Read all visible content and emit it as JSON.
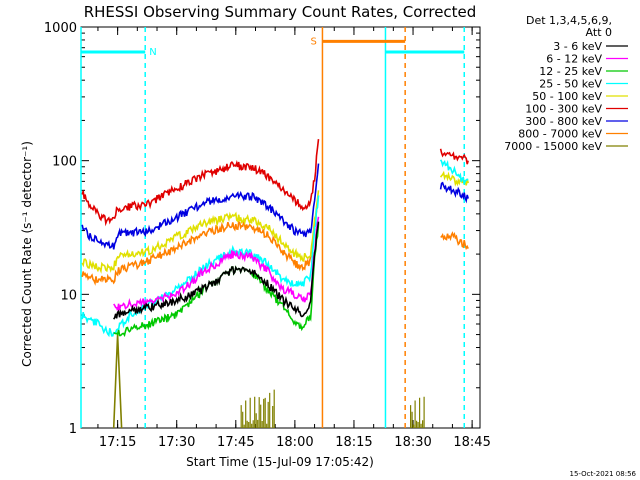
{
  "chart_data": {
    "type": "line",
    "title": "RHESSI Observing Summary Count Rates, Corrected",
    "xlabel": "Start Time (15-Jul-09 17:05:42)",
    "ylabel": "Corrected Count Rate (s⁻¹ detector⁻¹)",
    "yscale": "log",
    "ylim": [
      1,
      1000
    ],
    "xlim": [
      "17:05:42",
      "18:47:00"
    ],
    "xticks": [
      "17:15",
      "17:30",
      "17:45",
      "18:00",
      "18:15",
      "18:30",
      "18:45"
    ],
    "yticks": [
      "1",
      "10",
      "100",
      "1000"
    ],
    "legend_header": [
      "Det 1,3,4,5,6,9,",
      "Att 0"
    ],
    "legend_position": "right",
    "footer": "15-Oct-2021 08:56",
    "series": [
      {
        "name": "3 - 6 keV",
        "color": "#000000",
        "points": [
          [
            "17:14",
            7
          ],
          [
            "17:23",
            8
          ],
          [
            "17:30",
            9
          ],
          [
            "17:37",
            11
          ],
          [
            "17:44",
            15
          ],
          [
            "17:49",
            15
          ],
          [
            "17:53",
            12
          ],
          [
            "17:57",
            9
          ],
          [
            "18:00",
            8
          ],
          [
            "18:02",
            7
          ],
          [
            "18:04",
            9
          ],
          [
            "18:05",
            20
          ],
          [
            "18:06",
            35
          ]
        ]
      },
      {
        "name": "6 - 12 keV",
        "color": "#ff00ff",
        "points": [
          [
            "17:14",
            8
          ],
          [
            "17:23",
            9
          ],
          [
            "17:30",
            10
          ],
          [
            "17:37",
            15
          ],
          [
            "17:44",
            20
          ],
          [
            "17:49",
            19
          ],
          [
            "17:53",
            15
          ],
          [
            "17:57",
            11
          ],
          [
            "18:00",
            10
          ],
          [
            "18:02",
            9
          ],
          [
            "18:04",
            10
          ],
          [
            "18:05",
            22
          ],
          [
            "18:06",
            38
          ]
        ]
      },
      {
        "name": "12 - 25 keV",
        "color": "#00c800",
        "points": [
          [
            "17:14",
            5
          ],
          [
            "17:23",
            6
          ],
          [
            "17:30",
            7
          ],
          [
            "17:37",
            11
          ],
          [
            "17:44",
            15
          ],
          [
            "17:49",
            15
          ],
          [
            "17:53",
            11
          ],
          [
            "17:57",
            8
          ],
          [
            "18:00",
            6
          ],
          [
            "18:02",
            5.5
          ],
          [
            "18:04",
            7
          ],
          [
            "18:05",
            18
          ],
          [
            "18:06",
            34
          ]
        ]
      },
      {
        "name": "25 - 50 keV",
        "color": "#00ffff",
        "points": [
          [
            "17:06",
            7
          ],
          [
            "17:10",
            6
          ],
          [
            "17:14",
            5
          ],
          [
            "17:15",
            5.5
          ],
          [
            "17:18",
            7
          ],
          [
            "17:30",
            11
          ],
          [
            "17:37",
            16
          ],
          [
            "17:44",
            21
          ],
          [
            "17:49",
            20
          ],
          [
            "17:53",
            17
          ],
          [
            "17:57",
            13
          ],
          [
            "18:00",
            12
          ],
          [
            "18:02",
            12
          ],
          [
            "18:04",
            14
          ],
          [
            "18:05",
            30
          ],
          [
            "18:06",
            55
          ]
        ]
      },
      {
        "name": "50 - 100 keV",
        "color": "#e0e000",
        "points": [
          [
            "17:06",
            18
          ],
          [
            "17:09",
            16
          ],
          [
            "17:14",
            16
          ],
          [
            "17:15",
            19
          ],
          [
            "17:23",
            21
          ],
          [
            "17:30",
            27
          ],
          [
            "17:37",
            34
          ],
          [
            "17:44",
            38
          ],
          [
            "17:49",
            36
          ],
          [
            "17:53",
            32
          ],
          [
            "17:57",
            24
          ],
          [
            "18:00",
            20
          ],
          [
            "18:02",
            19
          ],
          [
            "18:04",
            20
          ],
          [
            "18:05",
            35
          ],
          [
            "18:06",
            60
          ]
        ]
      },
      {
        "name": "100 - 300 keV",
        "color": "#e00000",
        "points": [
          [
            "17:06",
            58
          ],
          [
            "17:08",
            45
          ],
          [
            "17:12",
            36
          ],
          [
            "17:14",
            36
          ],
          [
            "17:15",
            44
          ],
          [
            "17:23",
            48
          ],
          [
            "17:30",
            62
          ],
          [
            "17:37",
            78
          ],
          [
            "17:44",
            92
          ],
          [
            "17:49",
            90
          ],
          [
            "17:53",
            78
          ],
          [
            "17:57",
            60
          ],
          [
            "18:00",
            50
          ],
          [
            "18:02",
            46
          ],
          [
            "18:04",
            48
          ],
          [
            "18:05",
            75
          ],
          [
            "18:06",
            145
          ]
        ]
      },
      {
        "name": "300 - 800 keV",
        "color": "#0000e0",
        "points": [
          [
            "17:06",
            33
          ],
          [
            "17:08",
            27
          ],
          [
            "17:12",
            23
          ],
          [
            "17:14",
            23
          ],
          [
            "17:15",
            28
          ],
          [
            "17:23",
            30
          ],
          [
            "17:30",
            38
          ],
          [
            "17:37",
            48
          ],
          [
            "17:44",
            55
          ],
          [
            "17:49",
            54
          ],
          [
            "17:53",
            46
          ],
          [
            "17:57",
            36
          ],
          [
            "18:00",
            30
          ],
          [
            "18:02",
            28
          ],
          [
            "18:04",
            30
          ],
          [
            "18:05",
            50
          ],
          [
            "18:06",
            95
          ]
        ]
      },
      {
        "name": "800 - 7000 keV",
        "color": "#ff8000",
        "points": [
          [
            "17:06",
            14
          ],
          [
            "17:09",
            13
          ],
          [
            "17:14",
            13
          ],
          [
            "17:15",
            15
          ],
          [
            "17:23",
            18
          ],
          [
            "17:30",
            22
          ],
          [
            "17:37",
            29
          ],
          [
            "17:44",
            33
          ],
          [
            "17:49",
            32
          ],
          [
            "17:53",
            28
          ],
          [
            "17:57",
            21
          ],
          [
            "18:00",
            17
          ],
          [
            "18:02",
            16
          ],
          [
            "18:04",
            18
          ],
          [
            "18:05",
            32
          ],
          [
            "18:06",
            55
          ]
        ]
      },
      {
        "name": "7000 - 15000 keV",
        "color": "#808000",
        "points": [
          [
            "17:14",
            1
          ],
          [
            "17:15",
            5
          ],
          [
            "17:16",
            1
          ]
        ]
      }
    ],
    "late_series": [
      {
        "name": "100 - 300 keV",
        "color": "#e00000",
        "points": [
          [
            "18:37",
            115
          ],
          [
            "18:40",
            110
          ],
          [
            "18:43",
            105
          ],
          [
            "18:44",
            100
          ]
        ]
      },
      {
        "name": "300 - 800 keV",
        "color": "#0000e0",
        "points": [
          [
            "18:37",
            65
          ],
          [
            "18:40",
            60
          ],
          [
            "18:43",
            55
          ],
          [
            "18:44",
            52
          ]
        ]
      },
      {
        "name": "50 - 100 keV",
        "color": "#e0e000",
        "points": [
          [
            "18:37",
            78
          ],
          [
            "18:40",
            72
          ],
          [
            "18:43",
            70
          ],
          [
            "18:44",
            68
          ]
        ]
      },
      {
        "name": "25 - 50 keV",
        "color": "#00ffff",
        "points": [
          [
            "18:37",
            100
          ],
          [
            "18:40",
            85
          ],
          [
            "18:43",
            70
          ],
          [
            "18:44",
            72
          ]
        ]
      },
      {
        "name": "800 - 7000 keV",
        "color": "#ff8000",
        "points": [
          [
            "18:37",
            28
          ],
          [
            "18:40",
            27
          ],
          [
            "18:43",
            24
          ],
          [
            "18:44",
            22
          ]
        ]
      }
    ],
    "state_bars": [
      {
        "label": "N",
        "color": "#00ffff",
        "start": "17:05:42",
        "end": "17:22:00",
        "level": 650
      },
      {
        "label": "S",
        "color": "#ff8000",
        "start": "18:07:00",
        "end": "18:28:00",
        "level": 780
      },
      {
        "label": "",
        "color": "#00ffff",
        "start": "18:23:00",
        "end": "18:43:00",
        "level": 650
      }
    ],
    "state_markers": [
      {
        "time": "17:05:42",
        "color": "#00ffff",
        "style": "solid"
      },
      {
        "time": "17:22:00",
        "color": "#00ffff",
        "style": "dashed"
      },
      {
        "time": "18:07:00",
        "color": "#ff8000",
        "style": "solid"
      },
      {
        "time": "18:23:00",
        "color": "#00ffff",
        "style": "solid"
      },
      {
        "time": "18:28:00",
        "color": "#ff8000",
        "style": "dashed"
      },
      {
        "time": "18:43:00",
        "color": "#00ffff",
        "style": "dashed"
      }
    ],
    "bursts": [
      {
        "color": "#808000",
        "start": "17:46:00",
        "end": "17:55:00",
        "ymax": 2.0
      },
      {
        "color": "#808000",
        "start": "18:29:00",
        "end": "18:33:00",
        "ymax": 2.0
      }
    ]
  }
}
